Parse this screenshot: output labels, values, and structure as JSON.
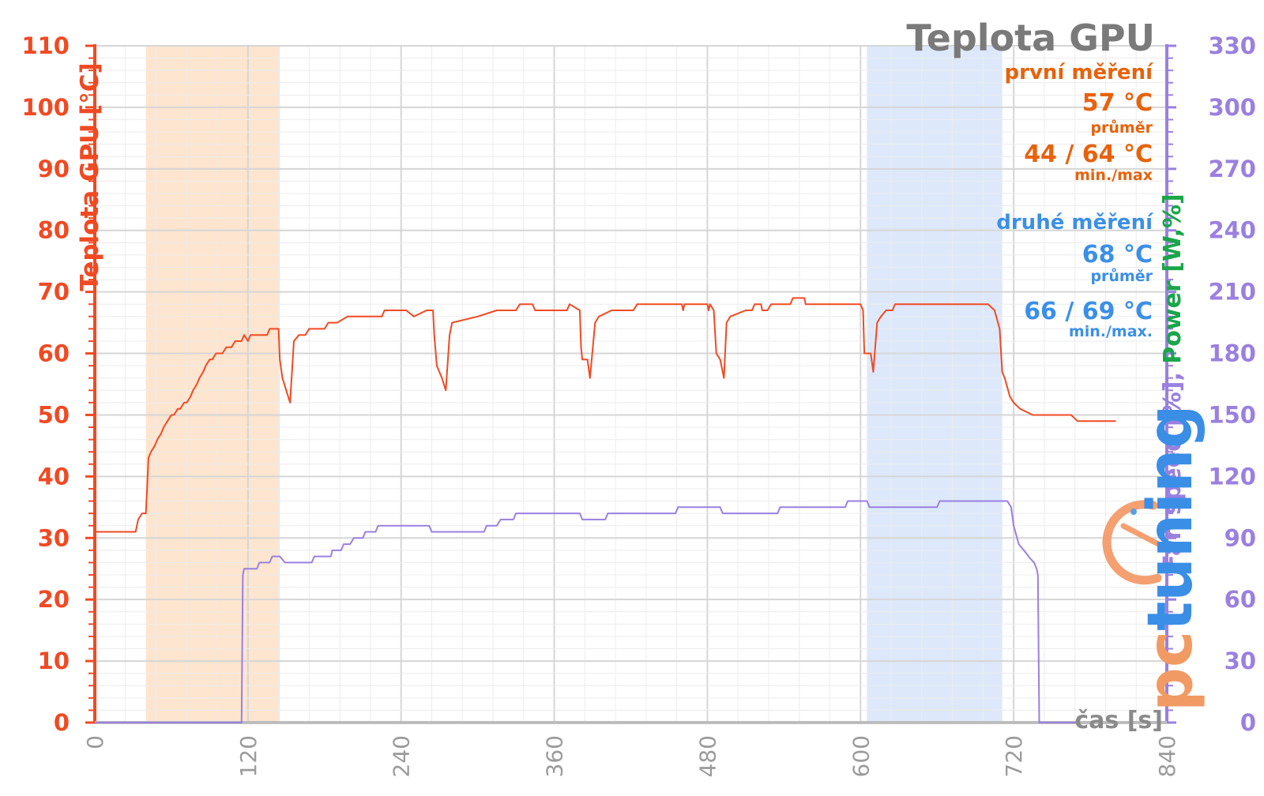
{
  "chart_data": {
    "type": "line",
    "title": "Teplota GPU",
    "xlabel": "čas [s]",
    "ylabel_left": "Teplota GPU [°C]",
    "ylabel_right_parts": [
      "Fan speed [%]",
      ", ",
      "Power [W,%]"
    ],
    "xlim": [
      0,
      840
    ],
    "ylim_left": [
      0,
      110
    ],
    "ylim_right": [
      0,
      330
    ],
    "x_ticks": [
      "0",
      "120",
      "240",
      "360",
      "480",
      "600",
      "720",
      "840"
    ],
    "y_ticks_left": [
      "0",
      "10",
      "20",
      "30",
      "40",
      "50",
      "60",
      "70",
      "80",
      "90",
      "100",
      "110"
    ],
    "y_ticks_right": [
      "0",
      "30",
      "60",
      "90",
      "120",
      "150",
      "180",
      "210",
      "240",
      "270",
      "300",
      "330"
    ],
    "grid": true,
    "highlight_regions": [
      {
        "name": "první měření",
        "x_range": [
          40,
          145
        ],
        "color": "#fde5cf"
      },
      {
        "name": "druhé měření",
        "x_range": [
          605,
          711
        ],
        "color": "#dde9fb"
      }
    ],
    "annotations": {
      "first": {
        "heading": "první měření",
        "avg": "57 °C",
        "avg_label": "průměr",
        "minmax": "44 / 64 °C",
        "minmax_label": "min./max",
        "color": "#e8620c"
      },
      "second": {
        "heading": "druhé měření",
        "avg": "68 °C",
        "avg_label": "průměr",
        "minmax": "66 / 69 °C",
        "minmax_label": "min./max.",
        "color": "#3b8fe8"
      }
    },
    "series": [
      {
        "axis": "left",
        "color": "#f04a23",
        "points": [
          [
            0,
            31
          ],
          [
            32,
            31
          ],
          [
            34,
            33
          ],
          [
            37,
            34
          ],
          [
            40,
            34
          ],
          [
            41,
            38
          ],
          [
            42,
            43
          ],
          [
            44,
            44
          ],
          [
            47,
            45
          ],
          [
            49,
            46
          ],
          [
            52,
            47
          ],
          [
            54,
            48
          ],
          [
            57,
            49
          ],
          [
            60,
            50
          ],
          [
            62,
            50
          ],
          [
            65,
            51
          ],
          [
            67,
            51
          ],
          [
            70,
            52
          ],
          [
            72,
            52
          ],
          [
            75,
            53
          ],
          [
            77,
            54
          ],
          [
            80,
            55
          ],
          [
            82,
            56
          ],
          [
            85,
            57
          ],
          [
            87,
            58
          ],
          [
            90,
            59
          ],
          [
            92,
            59
          ],
          [
            95,
            60
          ],
          [
            100,
            60
          ],
          [
            103,
            61
          ],
          [
            107,
            61
          ],
          [
            110,
            62
          ],
          [
            115,
            62
          ],
          [
            117,
            63
          ],
          [
            120,
            62
          ],
          [
            122,
            63
          ],
          [
            135,
            63
          ],
          [
            137,
            64
          ],
          [
            144,
            64
          ],
          [
            145,
            59
          ],
          [
            147,
            56
          ],
          [
            150,
            54
          ],
          [
            153,
            52
          ],
          [
            156,
            62
          ],
          [
            160,
            63
          ],
          [
            165,
            63
          ],
          [
            168,
            64
          ],
          [
            180,
            64
          ],
          [
            183,
            65
          ],
          [
            190,
            65
          ],
          [
            198,
            66
          ],
          [
            225,
            66
          ],
          [
            227,
            67
          ],
          [
            244,
            67
          ],
          [
            250,
            66
          ],
          [
            260,
            67
          ],
          [
            265,
            67
          ],
          [
            266,
            63
          ],
          [
            268,
            58
          ],
          [
            272,
            56
          ],
          [
            275,
            54
          ],
          [
            278,
            63
          ],
          [
            280,
            65
          ],
          [
            300,
            66
          ],
          [
            315,
            67
          ],
          [
            330,
            67
          ],
          [
            333,
            68
          ],
          [
            343,
            68
          ],
          [
            345,
            67
          ],
          [
            370,
            67
          ],
          [
            372,
            68
          ],
          [
            380,
            67
          ],
          [
            381,
            61
          ],
          [
            382,
            59
          ],
          [
            386,
            59
          ],
          [
            388,
            56
          ],
          [
            392,
            65
          ],
          [
            395,
            66
          ],
          [
            405,
            67
          ],
          [
            422,
            67
          ],
          [
            425,
            68
          ],
          [
            460,
            68
          ],
          [
            461,
            67
          ],
          [
            462,
            68
          ],
          [
            480,
            68
          ],
          [
            481,
            67
          ],
          [
            482,
            68
          ],
          [
            485,
            67
          ],
          [
            487,
            60
          ],
          [
            490,
            59
          ],
          [
            493,
            56
          ],
          [
            495,
            65
          ],
          [
            498,
            66
          ],
          [
            510,
            67
          ],
          [
            515,
            67
          ],
          [
            517,
            68
          ],
          [
            522,
            68
          ],
          [
            523,
            67
          ],
          [
            527,
            67
          ],
          [
            530,
            68
          ],
          [
            545,
            68
          ],
          [
            547,
            69
          ],
          [
            556,
            69
          ],
          [
            557,
            68
          ],
          [
            600,
            68
          ],
          [
            602,
            67
          ],
          [
            603,
            60
          ],
          [
            608,
            60
          ],
          [
            610,
            57
          ],
          [
            613,
            65
          ],
          [
            616,
            66
          ],
          [
            620,
            67
          ],
          [
            625,
            67
          ],
          [
            627,
            68
          ],
          [
            700,
            68
          ],
          [
            705,
            67
          ],
          [
            709,
            64
          ],
          [
            711,
            57
          ],
          [
            713,
            56
          ],
          [
            717,
            53
          ],
          [
            720,
            52
          ],
          [
            725,
            51
          ],
          [
            735,
            50
          ],
          [
            765,
            50
          ],
          [
            770,
            49
          ],
          [
            800,
            49
          ]
        ]
      },
      {
        "axis": "right",
        "color": "#9a80e0",
        "points": [
          [
            0,
            0
          ],
          [
            115,
            0
          ],
          [
            116,
            72
          ],
          [
            117,
            75
          ],
          [
            127,
            75
          ],
          [
            129,
            78
          ],
          [
            137,
            78
          ],
          [
            139,
            81
          ],
          [
            145,
            81
          ],
          [
            149,
            78
          ],
          [
            170,
            78
          ],
          [
            172,
            81
          ],
          [
            185,
            81
          ],
          [
            186,
            84
          ],
          [
            193,
            84
          ],
          [
            195,
            87
          ],
          [
            200,
            87
          ],
          [
            203,
            90
          ],
          [
            210,
            90
          ],
          [
            212,
            93
          ],
          [
            220,
            93
          ],
          [
            222,
            96
          ],
          [
            262,
            96
          ],
          [
            264,
            93
          ],
          [
            305,
            93
          ],
          [
            307,
            96
          ],
          [
            315,
            96
          ],
          [
            318,
            99
          ],
          [
            328,
            99
          ],
          [
            330,
            102
          ],
          [
            380,
            102
          ],
          [
            382,
            99
          ],
          [
            400,
            99
          ],
          [
            402,
            102
          ],
          [
            455,
            102
          ],
          [
            457,
            105
          ],
          [
            490,
            105
          ],
          [
            492,
            102
          ],
          [
            535,
            102
          ],
          [
            537,
            105
          ],
          [
            588,
            105
          ],
          [
            590,
            108
          ],
          [
            605,
            108
          ],
          [
            607,
            105
          ],
          [
            660,
            105
          ],
          [
            662,
            108
          ],
          [
            715,
            108
          ],
          [
            718,
            105
          ],
          [
            720,
            96
          ],
          [
            724,
            87
          ],
          [
            728,
            84
          ],
          [
            733,
            80
          ],
          [
            736,
            78
          ],
          [
            738,
            75
          ],
          [
            739,
            72
          ],
          [
            740,
            0
          ],
          [
            770,
            0
          ]
        ]
      }
    ]
  },
  "logo": {
    "text": "pctuning",
    "part1": "pc",
    "part2": "tuning"
  }
}
